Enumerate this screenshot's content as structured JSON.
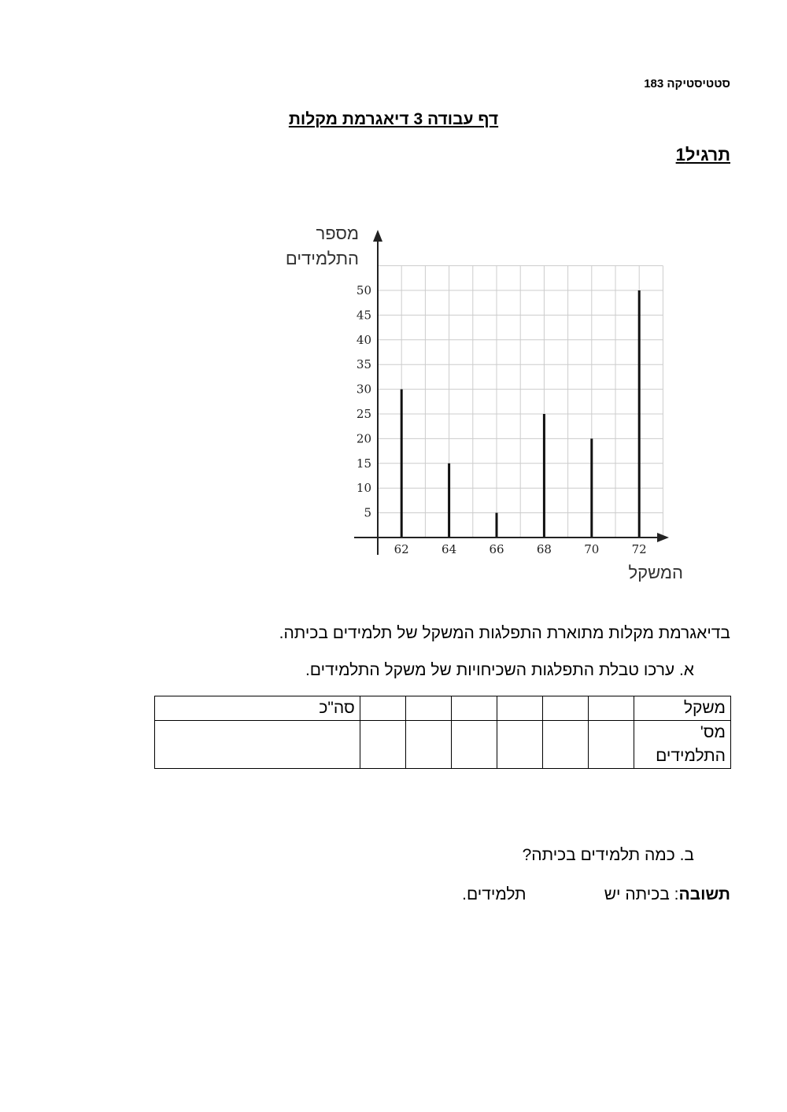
{
  "header": {
    "course": "סטטיסטיקה 183",
    "title": "דף עבודה 3 דיאגרמת מקלות",
    "exercise": "תרגיל1"
  },
  "chart_data": {
    "type": "bar",
    "style": "stick",
    "ylabel_line1": "מספר",
    "ylabel_line2": "התלמידים",
    "xlabel": "המשקל",
    "categories": [
      62,
      64,
      66,
      68,
      70,
      72
    ],
    "values": [
      30,
      15,
      5,
      25,
      20,
      50
    ],
    "yticks": [
      5,
      10,
      15,
      20,
      25,
      30,
      35,
      40,
      45,
      50
    ],
    "xlim": [
      61,
      73
    ],
    "ylim": [
      0,
      55
    ],
    "grid": true,
    "bar_color": "#111111",
    "grid_color": "#cccccc"
  },
  "text": {
    "intro": "בדיאגרמת מקלות מתוארת התפלגות המשקל של תלמידים בכיתה.",
    "qa": "א.  ערכו טבלת התפלגות השכיחויות של משקל התלמידים.",
    "qb": "ב.  כמה תלמידים בכיתה?",
    "answer_label": "תשובה",
    "answer_text": ": בכיתה יש                 תלמידים."
  },
  "table": {
    "row1_header": "משקל",
    "row2_header_line1": "מס'",
    "row2_header_line2": "התלמידים",
    "total": "סה\"כ"
  }
}
